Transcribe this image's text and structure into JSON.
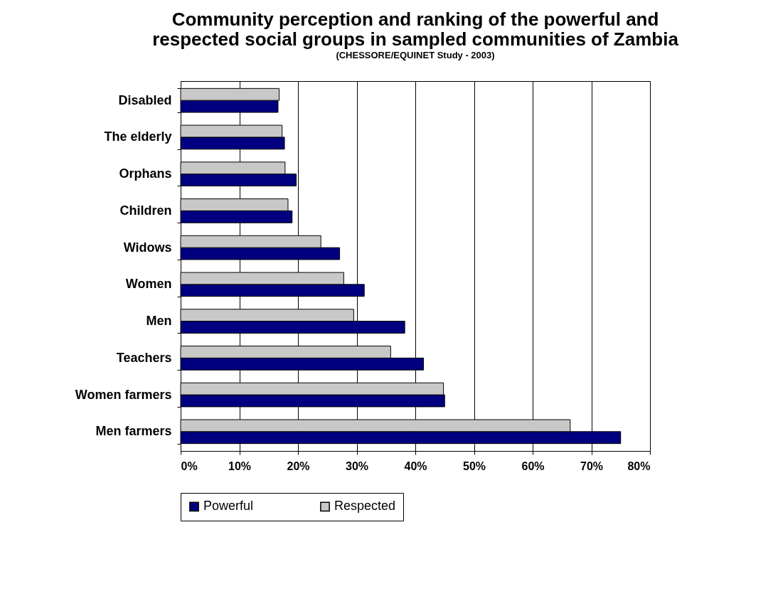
{
  "chart_data": {
    "type": "bar",
    "orientation": "horizontal",
    "title": [
      "Community perception and ranking of the powerful and",
      "respected social groups in sampled communities of Zambia"
    ],
    "subtitle": "(CHESSORE/EQUINET Study - 2003)",
    "categories": [
      "Disabled",
      "The elderly",
      "Orphans",
      "Children",
      "Widows",
      "Women",
      "Men",
      "Teachers",
      "Women farmers",
      "Men farmers"
    ],
    "series": [
      {
        "name": "Powerful",
        "color": "#000080",
        "values": [
          16.6,
          17.7,
          19.7,
          19.0,
          27.1,
          31.3,
          38.2,
          41.4,
          45.0,
          75.0
        ]
      },
      {
        "name": "Respected",
        "color": "#c8c8c8",
        "values": [
          16.8,
          17.3,
          17.8,
          18.3,
          23.9,
          27.8,
          29.5,
          35.8,
          44.8,
          66.4
        ]
      }
    ],
    "xlim": [
      0,
      80
    ],
    "xticks": [
      {
        "value": 0,
        "label": "0%"
      },
      {
        "value": 10,
        "label": "10%"
      },
      {
        "value": 20,
        "label": "20%"
      },
      {
        "value": 30,
        "label": "30%"
      },
      {
        "value": 40,
        "label": "40%"
      },
      {
        "value": 50,
        "label": "50%"
      },
      {
        "value": 60,
        "label": "60%"
      },
      {
        "value": 70,
        "label": "70%"
      },
      {
        "value": 80,
        "label": "80%"
      }
    ],
    "grid": "x",
    "legend": "bottom"
  }
}
